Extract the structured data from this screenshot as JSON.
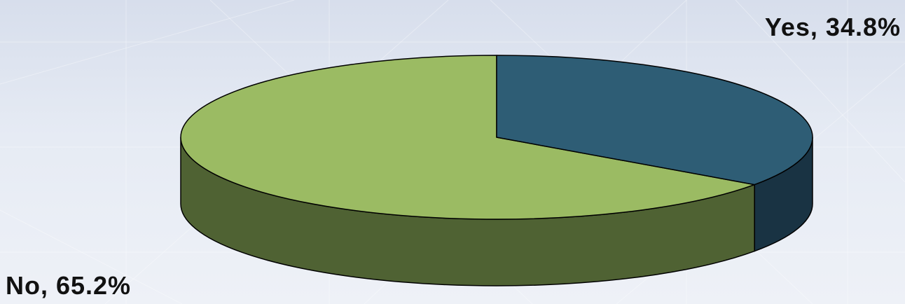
{
  "chart_data": {
    "type": "pie",
    "categories": [
      "No",
      "Yes"
    ],
    "values": [
      65.2,
      34.8
    ],
    "unit": "%",
    "three_d": true,
    "data_labels": [
      {
        "category": "Yes",
        "text": "Yes, 34.8%"
      },
      {
        "category": "No",
        "text": "No, 65.2%"
      }
    ],
    "colors": {
      "Yes": {
        "top": "#2e5d75",
        "side": "#193343"
      },
      "No": {
        "top": "#9bbb63",
        "side": "#4f6233"
      }
    },
    "outline_color": "#000000",
    "legend": "none"
  }
}
